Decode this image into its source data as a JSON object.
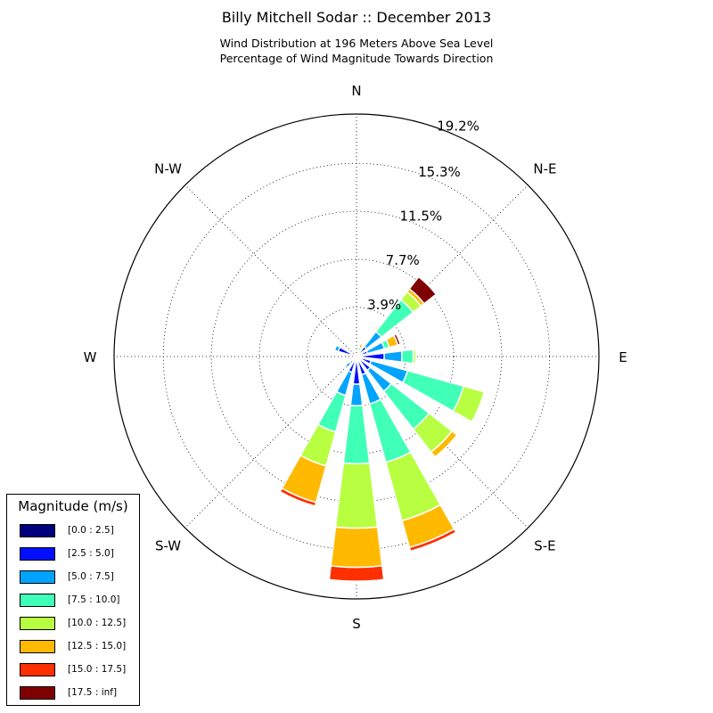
{
  "header": {
    "title": "Billy Mitchell Sodar :: December 2013",
    "subtitle_line1": "Wind Distribution at 196 Meters Above Sea Level",
    "subtitle_line2": "Percentage of Wind Magnitude Towards Direction"
  },
  "legend": {
    "title": "Magnitude (m/s)",
    "items": [
      {
        "label": "[0.0 : 2.5]",
        "color": "#00007f"
      },
      {
        "label": "[2.5 : 5.0]",
        "color": "#0010ff"
      },
      {
        "label": "[5.0 : 7.5]",
        "color": "#00a4ff"
      },
      {
        "label": "[7.5 : 10.0]",
        "color": "#40ffb7"
      },
      {
        "label": "[10.0 : 12.5]",
        "color": "#b7ff40"
      },
      {
        "label": "[12.5 : 15.0]",
        "color": "#ffb900"
      },
      {
        "label": "[15.0 : 17.5]",
        "color": "#ff3000"
      },
      {
        "label": "[17.5 : inf]",
        "color": "#7f0000"
      }
    ]
  },
  "chart_data": {
    "type": "windrose",
    "title": "Billy Mitchell Sodar :: December 2013",
    "subtitle": "Wind Distribution at 196 Meters Above Sea Level / Percentage of Wind Magnitude Towards Direction",
    "r_ticks": [
      "3.9%",
      "7.7%",
      "11.5%",
      "15.3%",
      "19.2%"
    ],
    "r_tick_values": [
      3.9,
      7.7,
      11.5,
      15.3,
      19.2
    ],
    "r_max": 19.2,
    "direction_labels": [
      "N",
      "N-E",
      "E",
      "S-E",
      "S",
      "S-W",
      "W",
      "N-W"
    ],
    "direction_angles_deg": [
      0,
      45,
      90,
      135,
      180,
      225,
      270,
      315
    ],
    "sector_width_deg": 14,
    "grid": true,
    "legend_position": "bottom-left",
    "bins": [
      "[0.0 : 2.5]",
      "[2.5 : 5.0]",
      "[5.0 : 7.5]",
      "[7.5 : 10.0]",
      "[10.0 : 12.5]",
      "[12.5 : 15.0]",
      "[15.0 : 17.5]",
      "[17.5 : inf]"
    ],
    "sectors": [
      {
        "direction_deg": 0,
        "values": [
          0.05,
          0.05,
          0,
          0,
          0,
          0,
          0,
          0
        ]
      },
      {
        "direction_deg": 22.5,
        "values": [
          0.05,
          0.2,
          0.2,
          0.3,
          0,
          0.3,
          0,
          0
        ]
      },
      {
        "direction_deg": 45,
        "values": [
          0.1,
          0.9,
          1.5,
          3.2,
          0.8,
          0.3,
          0,
          1.2
        ]
      },
      {
        "direction_deg": 67.5,
        "values": [
          0.1,
          0.8,
          1.4,
          0.4,
          0,
          0.7,
          0,
          0.2
        ]
      },
      {
        "direction_deg": 90,
        "values": [
          0.2,
          2.0,
          1.4,
          0.9,
          0.2,
          0,
          0,
          0
        ]
      },
      {
        "direction_deg": 112.5,
        "values": [
          0.2,
          1.0,
          3.0,
          4.6,
          1.7,
          0,
          0,
          0
        ]
      },
      {
        "direction_deg": 135,
        "values": [
          0.2,
          1.2,
          2.1,
          3.8,
          2.3,
          0.5,
          0,
          0
        ]
      },
      {
        "direction_deg": 157.5,
        "values": [
          0.3,
          1.2,
          2.4,
          4.8,
          4.8,
          2.2,
          0.3,
          0
        ]
      },
      {
        "direction_deg": 180,
        "values": [
          0.3,
          1.9,
          1.7,
          4.6,
          5.1,
          3.1,
          1.1,
          0
        ]
      },
      {
        "direction_deg": 202.5,
        "values": [
          0.2,
          1.1,
          1.9,
          3.0,
          2.8,
          3.0,
          0.3,
          0
        ]
      },
      {
        "direction_deg": 225,
        "values": [
          0.1,
          0.6,
          0.4,
          0,
          0,
          0,
          0,
          0
        ]
      },
      {
        "direction_deg": 247.5,
        "values": [
          0.1,
          0.3,
          0.2,
          0,
          0,
          0,
          0,
          0
        ]
      },
      {
        "direction_deg": 270,
        "values": [
          0.05,
          0.2,
          0,
          0,
          0,
          0,
          0,
          0
        ]
      },
      {
        "direction_deg": 292.5,
        "values": [
          0.1,
          1.4,
          0.3,
          0,
          0,
          0,
          0,
          0
        ]
      },
      {
        "direction_deg": 315,
        "values": [
          0.05,
          0.2,
          0,
          0,
          0,
          0,
          0,
          0
        ]
      },
      {
        "direction_deg": 337.5,
        "values": [
          0.05,
          0.1,
          0,
          0,
          0,
          0,
          0,
          0
        ]
      }
    ]
  }
}
